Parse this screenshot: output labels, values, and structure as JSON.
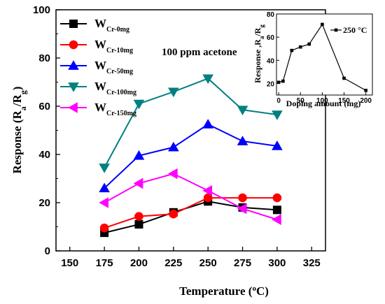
{
  "chart_data": [
    {
      "type": "line",
      "title": "",
      "annotation": "100 ppm acetone",
      "xlabel": {
        "main": "Temperature (",
        "sup": "o",
        "tail": "C)"
      },
      "ylabel": {
        "main": "Response (R",
        "sub1": "a",
        "mid": "/R",
        "sub2": "g",
        "tail": ")"
      },
      "xlim": [
        140,
        335
      ],
      "ylim": [
        0,
        100
      ],
      "xticks": [
        150,
        175,
        200,
        225,
        250,
        275,
        300,
        325
      ],
      "yticks": [
        0,
        20,
        40,
        60,
        80,
        100
      ],
      "x": [
        175,
        200,
        225,
        250,
        275,
        300
      ],
      "legend_position": "top-left",
      "series": [
        {
          "name": "W",
          "sub": "Cr-0mg",
          "color": "#000000",
          "marker": "square",
          "values": [
            7.5,
            11,
            16,
            20.5,
            18,
            17
          ]
        },
        {
          "name": "W",
          "sub": "Cr-10mg",
          "color": "#ff0000",
          "marker": "circle",
          "values": [
            9.5,
            14.3,
            15.3,
            22,
            22,
            22
          ]
        },
        {
          "name": "W",
          "sub": "Cr-50mg",
          "color": "#0000ff",
          "marker": "triangle-up",
          "values": [
            26,
            39.5,
            43,
            52.5,
            45.5,
            43.5
          ]
        },
        {
          "name": "W",
          "sub": "Cr-100mg",
          "color": "#008080",
          "marker": "triangle-down",
          "values": [
            34.5,
            61,
            66,
            71.5,
            58.5,
            56.5
          ]
        },
        {
          "name": "W",
          "sub": "Cr-150mg",
          "color": "#ff00ff",
          "marker": "triangle-left",
          "values": [
            20,
            28,
            32,
            25,
            17.5,
            13
          ]
        }
      ]
    },
    {
      "type": "line",
      "title": "",
      "xlabel": "Doping amount (mg)",
      "ylabel": {
        "main": "Response ,R",
        "sub1": "a",
        "mid": "/R",
        "sub2": "g"
      },
      "xlim": [
        -5,
        215
      ],
      "ylim": [
        10,
        80
      ],
      "xticks": [
        0,
        50,
        100,
        150,
        200
      ],
      "yticks": [
        20,
        40,
        60,
        80
      ],
      "legend_position": "top-right",
      "series": [
        {
          "name": "250 °C",
          "color": "#000000",
          "marker": "square",
          "x": [
            0,
            10,
            30,
            50,
            70,
            100,
            150,
            200
          ],
          "values": [
            21,
            22,
            48.5,
            51.5,
            54,
            71,
            24.5,
            14
          ]
        }
      ]
    }
  ]
}
